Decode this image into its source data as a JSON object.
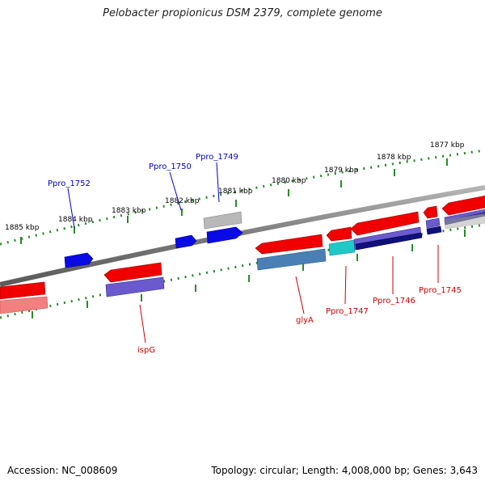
{
  "title": "Pelobacter propionicus DSM 2379, complete genome",
  "footer": {
    "accession": "Accession: NC_008609",
    "topology": "Topology: circular; Length: 4,008,000 bp; Genes: 3,643"
  },
  "colors": {
    "tick": "#2a8a2a",
    "backbone": "#777777",
    "forward_label": "#0000cc",
    "reverse_label": "#cc0000"
  },
  "scale_labels": [
    "1885 kbp",
    "1884 kbp",
    "1883 kbp",
    "1882 kbp",
    "1881 kbp",
    "1880 kbp",
    "1879 kbp",
    "1878 kbp",
    "1877 kbp"
  ],
  "gene_labels": {
    "forward": [
      "Ppro_1752",
      "Ppro_1750",
      "Ppro_1749"
    ],
    "reverse": [
      "ispG",
      "glyA",
      "Ppro_1747",
      "Ppro_1746",
      "Ppro_1745"
    ]
  }
}
